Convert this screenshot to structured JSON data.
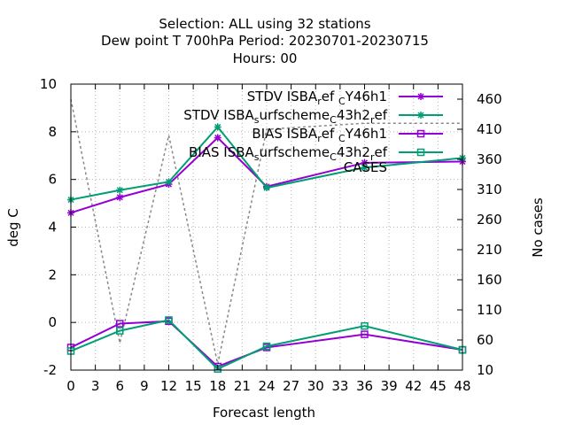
{
  "chart_data": {
    "type": "line",
    "title_lines": [
      "Selection: ALL using    32 stations",
      "Dew point T 700hPa   Period: 20230701-20230715",
      "Hours:  00"
    ],
    "xlabel": "Forecast length",
    "ylabel": "deg C",
    "y2label": "No cases",
    "xlim": [
      0,
      48
    ],
    "ylim": [
      -2,
      10
    ],
    "y2lim": [
      10,
      485
    ],
    "x_ticks": [
      "0",
      "3",
      "6",
      "9",
      "12",
      "15",
      "18",
      "21",
      "24",
      "27",
      "30",
      "33",
      "36",
      "39",
      "42",
      "45",
      "48"
    ],
    "y_ticks": [
      "-2",
      "0",
      "2",
      "4",
      "6",
      "8",
      "10"
    ],
    "y2_ticks": [
      "10",
      "60",
      "110",
      "160",
      "210",
      "260",
      "310",
      "360",
      "410",
      "460"
    ],
    "grid": true,
    "legend_position": "top-right",
    "series": [
      {
        "name_main": "STDV ISBA",
        "name_parts": [
          [
            "r",
            "sub"
          ],
          [
            "ef ",
            ""
          ],
          [
            "C",
            "sub"
          ],
          [
            "Y46h1",
            ""
          ]
        ],
        "color": "#9400d3",
        "marker": "star",
        "axis": "y",
        "x": [
          0,
          6,
          12,
          18,
          24,
          36,
          48
        ],
        "values": [
          4.6,
          5.25,
          5.8,
          7.75,
          5.7,
          6.7,
          6.75
        ]
      },
      {
        "name_main": "STDV ISBA",
        "name_parts": [
          [
            "s",
            "sub"
          ],
          [
            "urfscheme",
            ""
          ],
          [
            "C",
            "sub"
          ],
          [
            "43h2",
            ""
          ],
          [
            "r",
            "sub"
          ],
          [
            "ef",
            ""
          ]
        ],
        "color": "#009e73",
        "marker": "star",
        "axis": "y",
        "x": [
          0,
          6,
          12,
          18,
          24,
          36,
          48
        ],
        "values": [
          5.15,
          5.55,
          5.9,
          8.2,
          5.65,
          6.5,
          6.9
        ]
      },
      {
        "name_main": "BIAS ISBA",
        "name_parts": [
          [
            "r",
            "sub"
          ],
          [
            "ef ",
            ""
          ],
          [
            "C",
            "sub"
          ],
          [
            "Y46h1",
            ""
          ]
        ],
        "color": "#9400d3",
        "marker": "square",
        "axis": "y",
        "x": [
          0,
          6,
          12,
          18,
          24,
          36,
          48
        ],
        "values": [
          -1.05,
          -0.05,
          0.05,
          -1.85,
          -1.05,
          -0.5,
          -1.15
        ]
      },
      {
        "name_main": "BIAS ISBA",
        "name_parts": [
          [
            "s",
            "sub"
          ],
          [
            "urfscheme",
            ""
          ],
          [
            "C",
            "sub"
          ],
          [
            "43h2",
            ""
          ],
          [
            "r",
            "sub"
          ],
          [
            "ef",
            ""
          ]
        ],
        "color": "#009e73",
        "marker": "square",
        "axis": "y",
        "x": [
          0,
          6,
          12,
          18,
          24,
          36,
          48
        ],
        "values": [
          -1.2,
          -0.35,
          0.1,
          -1.95,
          -1.0,
          -0.15,
          -1.15
        ]
      },
      {
        "name_main": "CASES",
        "name_parts": [],
        "color": "#888888",
        "marker": "none",
        "dashed": true,
        "axis": "y2",
        "x": [
          0,
          6,
          12,
          18,
          24,
          36,
          48
        ],
        "values": [
          460,
          55,
          400,
          20,
          410,
          420,
          420
        ]
      }
    ]
  }
}
